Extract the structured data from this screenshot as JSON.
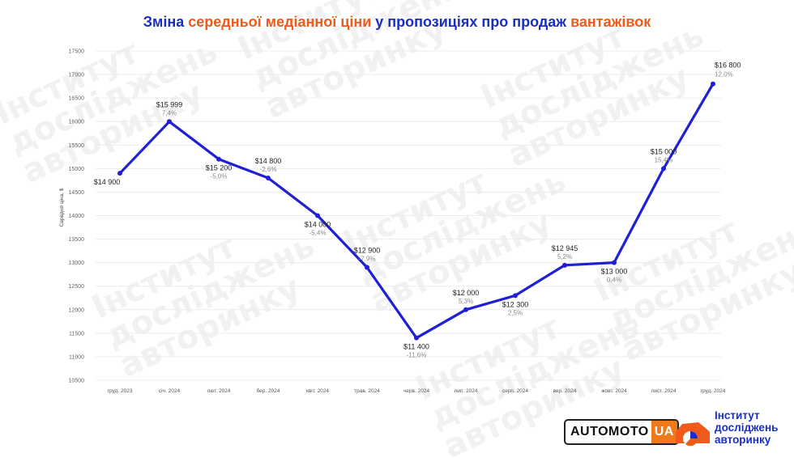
{
  "title": {
    "parts": [
      {
        "text": "Зміна ",
        "accent": false
      },
      {
        "text": "середньої медіанної ціни",
        "accent": true
      },
      {
        "text": " у пропозиціях про продаж ",
        "accent": false
      },
      {
        "text": "вантажівок",
        "accent": true
      }
    ]
  },
  "colors": {
    "title": "#1a2fc0",
    "accent": "#f05a1a",
    "line": "#1f1fd6",
    "logo_orange": "#f07a1a"
  },
  "watermark": {
    "line1": "Інститут",
    "line2": "досліджень",
    "line3": "авторинку"
  },
  "logos": {
    "automoto_part1": "AUTOMOTO",
    "automoto_part2": "UA",
    "institute_line1": "Інститут",
    "institute_line2": "досліджень",
    "institute_line3": "авторинку",
    "institute_icon": "car-pie-icon"
  },
  "chart_data": {
    "type": "line",
    "title": "Зміна середньої медіанної ціни у пропозиціях про продаж вантажівок",
    "xlabel": "",
    "ylabel": "Середня ціна, $",
    "ylim": [
      10500,
      17500
    ],
    "yticks": [
      10500,
      11000,
      11500,
      12000,
      12500,
      13000,
      13500,
      14000,
      14500,
      15000,
      15500,
      16000,
      16500,
      17000,
      17500
    ],
    "grid": true,
    "categories": [
      "груд. 2023",
      "січ. 2024",
      "лют. 2024",
      "бер. 2024",
      "квіт. 2024",
      "трав. 2024",
      "черв. 2024",
      "лип. 2024",
      "серп. 2024",
      "вер. 2024",
      "жовт. 2024",
      "лист. 2024",
      "груд. 2024"
    ],
    "series": [
      {
        "values": [
          14900,
          15999,
          15200,
          14800,
          14000,
          12900,
          11400,
          12000,
          12300,
          12945,
          13000,
          15000,
          16800
        ],
        "value_labels": [
          "$14 900",
          "$15 999",
          "$15 200",
          "$14 800",
          "$14 000",
          "$12 900",
          "$11 400",
          "$12 000",
          "$12 300",
          "$12 945",
          "$13 000",
          "$15 000",
          "$16 800"
        ],
        "change_labels": [
          "",
          "7,4%",
          "-5,0%",
          "-2,6%",
          "-5,4%",
          "-7,9%",
          "-11,6%",
          "5,3%",
          "2,5%",
          "5,2%",
          "0,4%",
          "15,4%",
          "12,0%"
        ]
      }
    ]
  }
}
